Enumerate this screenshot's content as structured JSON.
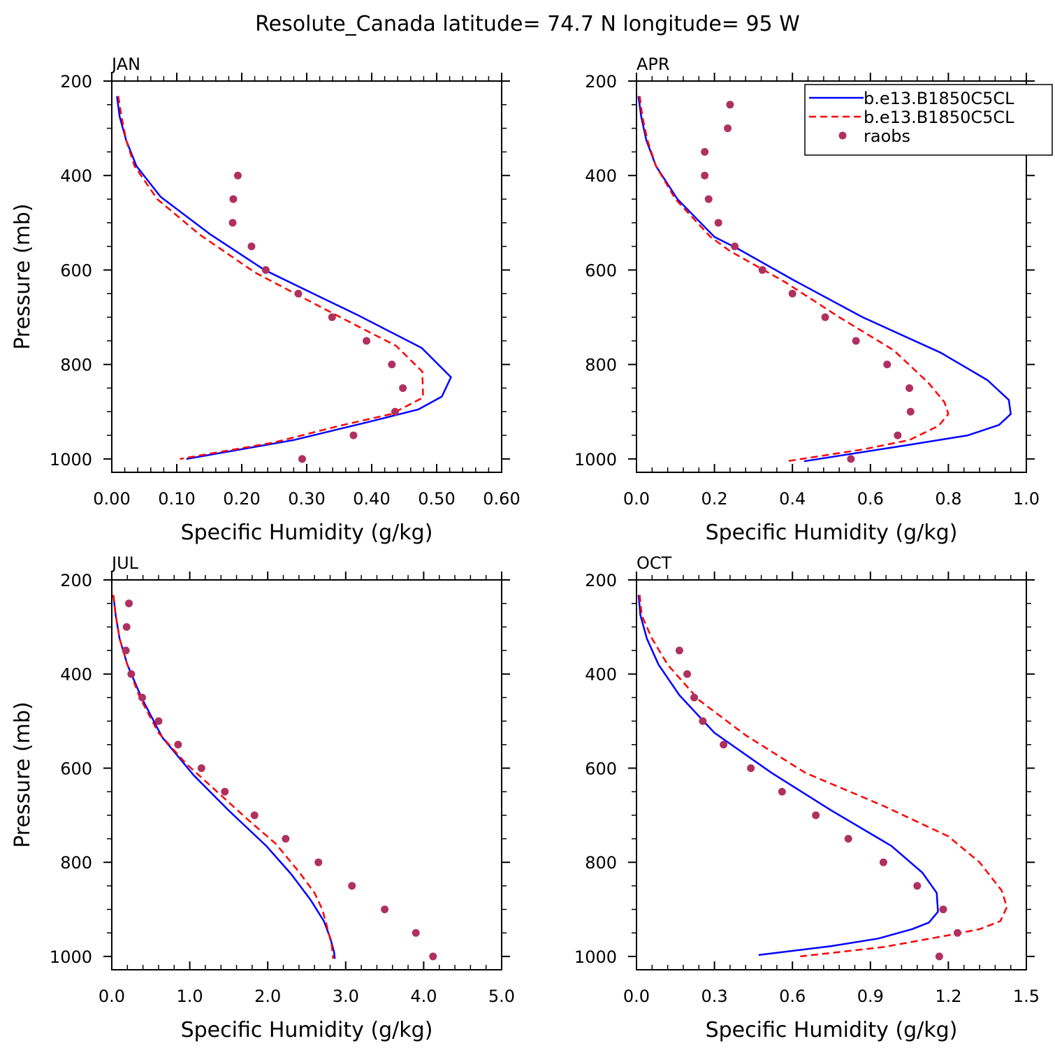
{
  "title": "Resolute_Canada  latitude= 74.7 N longitude= 95 W",
  "legend": {
    "placement": "top-right of APR panel",
    "entries": [
      {
        "label": "b.e13.B1850C5CL",
        "style": "solid",
        "color": "#0000ff"
      },
      {
        "label": "b.e13.B1850C5CL",
        "style": "dashed",
        "color": "#ff0000"
      },
      {
        "label": "raobs",
        "style": "dot",
        "color": "#b03060"
      }
    ]
  },
  "colors": {
    "model_solid": "#0000ff",
    "model_dashed": "#ff0000",
    "obs": "#b03060",
    "axis": "#000000"
  },
  "chart_data": [
    {
      "type": "line",
      "panel": "JAN",
      "xlabel": "Specific Humidity (g/kg)",
      "ylabel": "Pressure (mb)",
      "xlim": [
        0,
        0.6
      ],
      "ylim": [
        200,
        1000
      ],
      "x_ticks": [
        "0.00",
        "0.10",
        "0.20",
        "0.30",
        "0.40",
        "0.50",
        "0.60"
      ],
      "x_tick_values": [
        0,
        0.1,
        0.2,
        0.3,
        0.4,
        0.5,
        0.6
      ],
      "y_ticks": [
        "200",
        "400",
        "600",
        "800",
        "1000"
      ],
      "y_tick_values": [
        200,
        400,
        600,
        800,
        1000
      ],
      "series": [
        {
          "name": "b.e13.B1850C5CL",
          "style": "solid",
          "x": [
            0.008,
            0.012,
            0.022,
            0.038,
            0.075,
            0.152,
            0.235,
            0.31,
            0.378,
            0.477,
            0.522,
            0.508,
            0.472,
            0.4,
            0.28,
            0.115
          ],
          "y": [
            232,
            275,
            325,
            380,
            445,
            525,
            600,
            650,
            695,
            765,
            827,
            868,
            895,
            920,
            960,
            1000
          ]
        },
        {
          "name": "b.e13.B1850C5CL",
          "style": "dashed",
          "x": [
            0.01,
            0.015,
            0.022,
            0.035,
            0.07,
            0.135,
            0.22,
            0.31,
            0.38,
            0.437,
            0.478,
            0.479,
            0.43,
            0.35,
            0.25,
            0.105
          ],
          "y": [
            232,
            275,
            325,
            380,
            450,
            525,
            605,
            670,
            720,
            760,
            815,
            870,
            905,
            930,
            965,
            1000
          ]
        },
        {
          "name": "raobs",
          "style": "dots",
          "x": [
            0.194,
            0.187,
            0.186,
            0.215,
            0.237,
            0.287,
            0.339,
            0.392,
            0.431,
            0.448,
            0.436,
            0.372,
            0.293
          ],
          "y": [
            400,
            450,
            500,
            550,
            600,
            650,
            700,
            750,
            800,
            850,
            900,
            950,
            1000
          ]
        }
      ]
    },
    {
      "type": "line",
      "panel": "APR",
      "xlabel": "Specific Humidity (g/kg)",
      "ylabel": "",
      "xlim": [
        0,
        1.0
      ],
      "ylim": [
        200,
        1000
      ],
      "x_ticks": [
        "0.0",
        "0.2",
        "0.4",
        "0.6",
        "0.8",
        "1.0"
      ],
      "x_tick_values": [
        0,
        0.2,
        0.4,
        0.6,
        0.8,
        1.0
      ],
      "y_ticks": [
        "200",
        "400",
        "600",
        "800",
        "1000"
      ],
      "y_tick_values": [
        200,
        400,
        600,
        800,
        1000
      ],
      "series": [
        {
          "name": "b.e13.B1850C5CL",
          "style": "solid",
          "x": [
            0.005,
            0.012,
            0.025,
            0.05,
            0.105,
            0.2,
            0.26,
            0.4,
            0.58,
            0.78,
            0.9,
            0.955,
            0.96,
            0.93,
            0.85,
            0.7,
            0.43
          ],
          "y": [
            232,
            275,
            325,
            380,
            450,
            530,
            555,
            620,
            700,
            775,
            833,
            875,
            905,
            928,
            950,
            970,
            1005
          ]
        },
        {
          "name": "b.e13.B1850C5CL",
          "style": "dashed",
          "x": [
            0.008,
            0.015,
            0.028,
            0.05,
            0.1,
            0.19,
            0.24,
            0.38,
            0.52,
            0.66,
            0.75,
            0.79,
            0.8,
            0.775,
            0.7,
            0.58,
            0.385
          ],
          "y": [
            232,
            275,
            325,
            380,
            450,
            530,
            560,
            625,
            700,
            770,
            840,
            880,
            905,
            930,
            960,
            980,
            1005
          ]
        },
        {
          "name": "raobs",
          "style": "dots",
          "x": [
            0.24,
            0.234,
            0.175,
            0.175,
            0.185,
            0.21,
            0.252,
            0.323,
            0.4,
            0.484,
            0.563,
            0.643,
            0.7,
            0.703,
            0.67,
            0.55
          ],
          "y": [
            250,
            300,
            350,
            400,
            450,
            500,
            550,
            600,
            650,
            700,
            750,
            800,
            850,
            900,
            950,
            1000
          ]
        }
      ]
    },
    {
      "type": "line",
      "panel": "JUL",
      "xlabel": "Specific Humidity (g/kg)",
      "ylabel": "Pressure (mb)",
      "xlim": [
        0,
        5.0
      ],
      "ylim": [
        200,
        1000
      ],
      "x_ticks": [
        "0.0",
        "1.0",
        "2.0",
        "3.0",
        "4.0",
        "5.0"
      ],
      "x_tick_values": [
        0,
        1,
        2,
        3,
        4,
        5
      ],
      "y_ticks": [
        "200",
        "400",
        "600",
        "800",
        "1000"
      ],
      "y_tick_values": [
        200,
        400,
        600,
        800,
        1000
      ],
      "series": [
        {
          "name": "b.e13.B1850C5CL",
          "style": "solid",
          "x": [
            0.02,
            0.05,
            0.1,
            0.2,
            0.38,
            0.65,
            1.05,
            1.5,
            1.98,
            2.3,
            2.55,
            2.72,
            2.8,
            2.85,
            2.86
          ],
          "y": [
            232,
            275,
            325,
            380,
            450,
            535,
            615,
            690,
            765,
            825,
            880,
            925,
            960,
            990,
            1005
          ]
        },
        {
          "name": "b.e13.B1850C5CL",
          "style": "dashed",
          "x": [
            0.02,
            0.05,
            0.1,
            0.2,
            0.36,
            0.6,
            0.95,
            1.35,
            1.75,
            2.1,
            2.4,
            2.6,
            2.7,
            2.75,
            2.82,
            2.84
          ],
          "y": [
            232,
            275,
            325,
            380,
            450,
            525,
            590,
            650,
            710,
            760,
            820,
            865,
            900,
            930,
            975,
            1005
          ]
        },
        {
          "name": "raobs",
          "style": "dots",
          "x": [
            0.22,
            0.19,
            0.18,
            0.25,
            0.39,
            0.6,
            0.85,
            1.15,
            1.45,
            1.83,
            2.23,
            2.65,
            3.08,
            3.5,
            3.9,
            4.12
          ],
          "y": [
            250,
            300,
            350,
            400,
            450,
            500,
            550,
            600,
            650,
            700,
            750,
            800,
            850,
            900,
            950,
            1000
          ]
        }
      ]
    },
    {
      "type": "line",
      "panel": "OCT",
      "xlabel": "Specific Humidity (g/kg)",
      "ylabel": "",
      "xlim": [
        0,
        1.5
      ],
      "ylim": [
        200,
        1000
      ],
      "x_ticks": [
        "0.0",
        "0.3",
        "0.6",
        "0.9",
        "1.2",
        "1.5"
      ],
      "x_tick_values": [
        0,
        0.3,
        0.6,
        0.9,
        1.2,
        1.5
      ],
      "y_ticks": [
        "200",
        "400",
        "600",
        "800",
        "1000"
      ],
      "y_tick_values": [
        200,
        400,
        600,
        800,
        1000
      ],
      "series": [
        {
          "name": "b.e13.B1850C5CL",
          "style": "solid",
          "x": [
            0.008,
            0.015,
            0.04,
            0.085,
            0.165,
            0.3,
            0.52,
            0.75,
            0.98,
            1.1,
            1.155,
            1.16,
            1.125,
            1.06,
            0.93,
            0.75,
            0.47
          ],
          "y": [
            232,
            275,
            325,
            380,
            445,
            525,
            610,
            690,
            765,
            822,
            865,
            905,
            928,
            942,
            962,
            978,
            997
          ]
        },
        {
          "name": "b.e13.B1850C5CL",
          "style": "dashed",
          "x": [
            0.012,
            0.02,
            0.06,
            0.12,
            0.24,
            0.42,
            0.65,
            0.95,
            1.2,
            1.32,
            1.405,
            1.425,
            1.4,
            1.32,
            1.2,
            0.95,
            0.63
          ],
          "y": [
            232,
            275,
            325,
            380,
            455,
            530,
            610,
            680,
            745,
            800,
            860,
            895,
            925,
            942,
            955,
            980,
            1000
          ]
        },
        {
          "name": "raobs",
          "style": "dots",
          "x": [
            0.165,
            0.195,
            0.222,
            0.255,
            0.335,
            0.44,
            0.56,
            0.69,
            0.815,
            0.95,
            1.08,
            1.18,
            1.235,
            1.165
          ],
          "y": [
            350,
            400,
            450,
            500,
            550,
            600,
            650,
            700,
            750,
            800,
            850,
            900,
            950,
            1000
          ]
        }
      ]
    }
  ]
}
